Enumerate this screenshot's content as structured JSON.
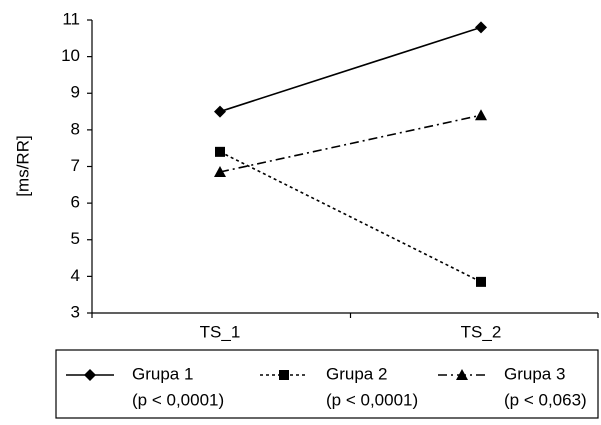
{
  "chart_data": {
    "type": "line",
    "title": "",
    "xlabel": "",
    "ylabel": "[ms/RR]",
    "x": [
      "TS_1",
      "TS_2"
    ],
    "ylim": [
      3,
      11
    ],
    "yticks": [
      "3",
      "4",
      "5",
      "6",
      "7",
      "8",
      "9",
      "10",
      "11"
    ],
    "grid": false,
    "legend_position": "bottom",
    "series": [
      {
        "name": "Grupa 1",
        "name_note": "(p < 0,0001)",
        "values": [
          8.5,
          10.8
        ],
        "marker": "diamond",
        "line_style": "solid",
        "color": "#000000"
      },
      {
        "name": "Grupa 2",
        "name_note": "(p < 0,0001)",
        "values": [
          7.4,
          3.85
        ],
        "marker": "square",
        "line_style": "dotted",
        "color": "#000000"
      },
      {
        "name": "Grupa 3",
        "name_note": "(p < 0,063)",
        "values": [
          6.85,
          8.4
        ],
        "marker": "triangle",
        "line_style": "dashdot",
        "color": "#000000"
      }
    ]
  }
}
